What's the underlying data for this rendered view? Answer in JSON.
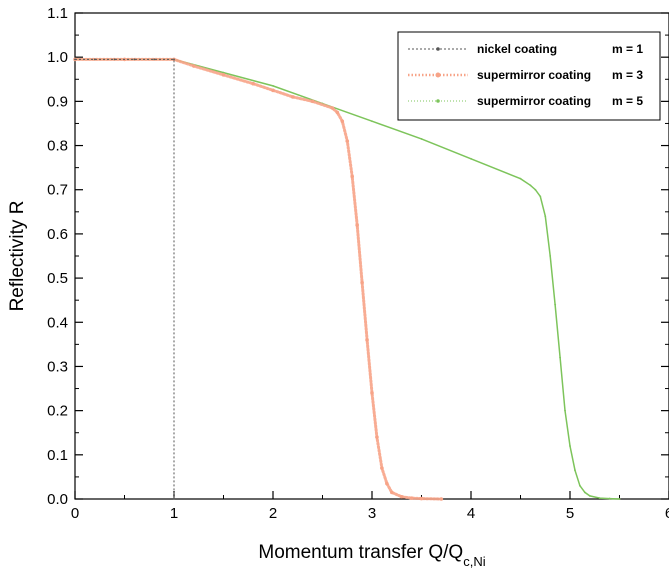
{
  "chart_data": {
    "type": "line",
    "title": "",
    "xlabel": "Momentum transfer Q/Q",
    "xlabel_sub": "c,Ni",
    "ylabel": "Reflectivity R",
    "xlim": [
      0,
      6
    ],
    "ylim": [
      0,
      1.1
    ],
    "xticks": [
      "0",
      "1",
      "2",
      "3",
      "4",
      "5",
      "6"
    ],
    "yticks": [
      "0.0",
      "0.1",
      "0.2",
      "0.3",
      "0.4",
      "0.5",
      "0.6",
      "0.7",
      "0.8",
      "0.9",
      "1.0",
      "1.1"
    ],
    "grid": false,
    "legend_position": "top-right",
    "series": [
      {
        "name": "nickel coating",
        "m_label": "m = 1",
        "color": "#555555",
        "style": "dotted",
        "x": [
          0,
          0.2,
          0.4,
          0.6,
          0.8,
          1.0,
          1.0
        ],
        "y": [
          0.995,
          0.995,
          0.995,
          0.995,
          0.995,
          0.995,
          0.0
        ]
      },
      {
        "name": "supermirror coating",
        "m_label": "m = 3",
        "color": "#f7a387",
        "style": "dots",
        "x": [
          0,
          0.5,
          1.0,
          1.2,
          1.5,
          1.8,
          2.0,
          2.2,
          2.4,
          2.6,
          2.65,
          2.7,
          2.75,
          2.8,
          2.85,
          2.9,
          2.95,
          3.0,
          3.05,
          3.1,
          3.15,
          3.2,
          3.3,
          3.4,
          3.5,
          3.7
        ],
        "y": [
          0.995,
          0.995,
          0.995,
          0.98,
          0.96,
          0.94,
          0.925,
          0.91,
          0.9,
          0.885,
          0.875,
          0.855,
          0.81,
          0.73,
          0.62,
          0.49,
          0.36,
          0.24,
          0.14,
          0.07,
          0.035,
          0.015,
          0.005,
          0.002,
          0.001,
          0.0
        ]
      },
      {
        "name": "supermirror coating",
        "m_label": "m = 5",
        "color": "#7dc45b",
        "style": "line",
        "x": [
          0,
          0.5,
          1.0,
          1.5,
          2.0,
          2.5,
          3.0,
          3.5,
          4.0,
          4.5,
          4.6,
          4.65,
          4.7,
          4.75,
          4.8,
          4.85,
          4.9,
          4.95,
          5.0,
          5.05,
          5.1,
          5.15,
          5.2,
          5.3,
          5.4,
          5.5
        ],
        "y": [
          0.995,
          0.995,
          0.995,
          0.965,
          0.935,
          0.895,
          0.855,
          0.815,
          0.77,
          0.725,
          0.71,
          0.7,
          0.685,
          0.64,
          0.55,
          0.44,
          0.32,
          0.2,
          0.12,
          0.065,
          0.03,
          0.015,
          0.007,
          0.002,
          0.001,
          0.0
        ]
      }
    ]
  }
}
